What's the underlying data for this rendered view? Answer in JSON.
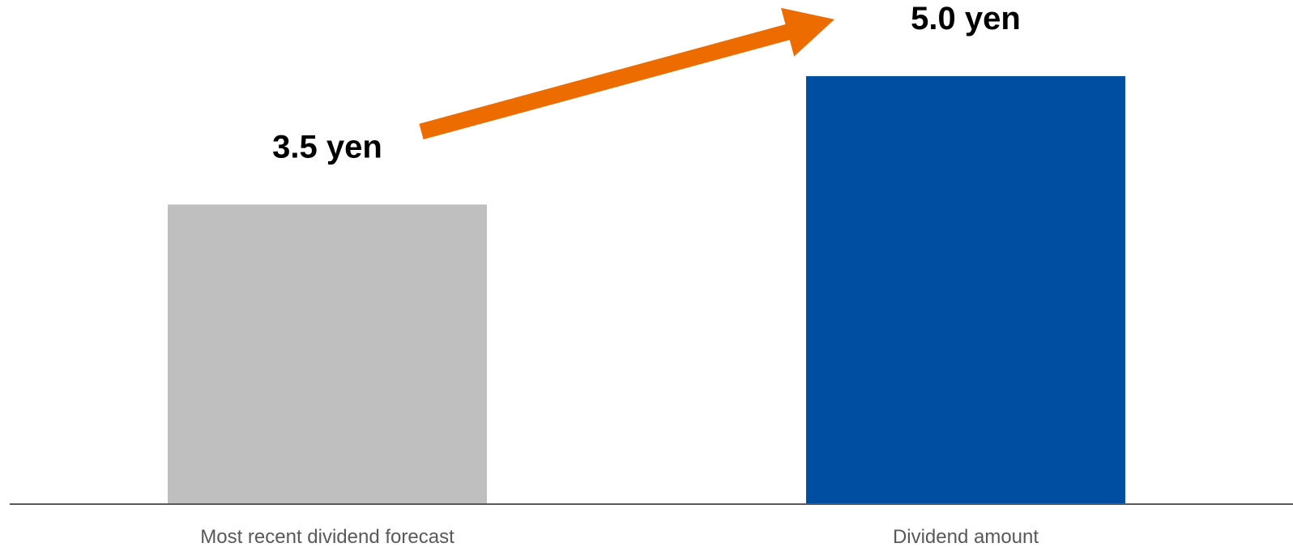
{
  "chart_data": {
    "type": "bar",
    "categories": [
      "Most recent dividend forecast",
      "Dividend amount"
    ],
    "values": [
      3.5,
      5.0
    ],
    "data_labels": [
      "3.5 yen",
      "5.0 yen"
    ],
    "ylim": [
      0,
      5.7
    ],
    "grid": false,
    "legend": "none",
    "colors": [
      "#BFBFBF",
      "#004EA2"
    ],
    "annotation": {
      "type": "arrow",
      "from_category": 0,
      "to_category": 1,
      "color": "#ED6C00"
    }
  }
}
